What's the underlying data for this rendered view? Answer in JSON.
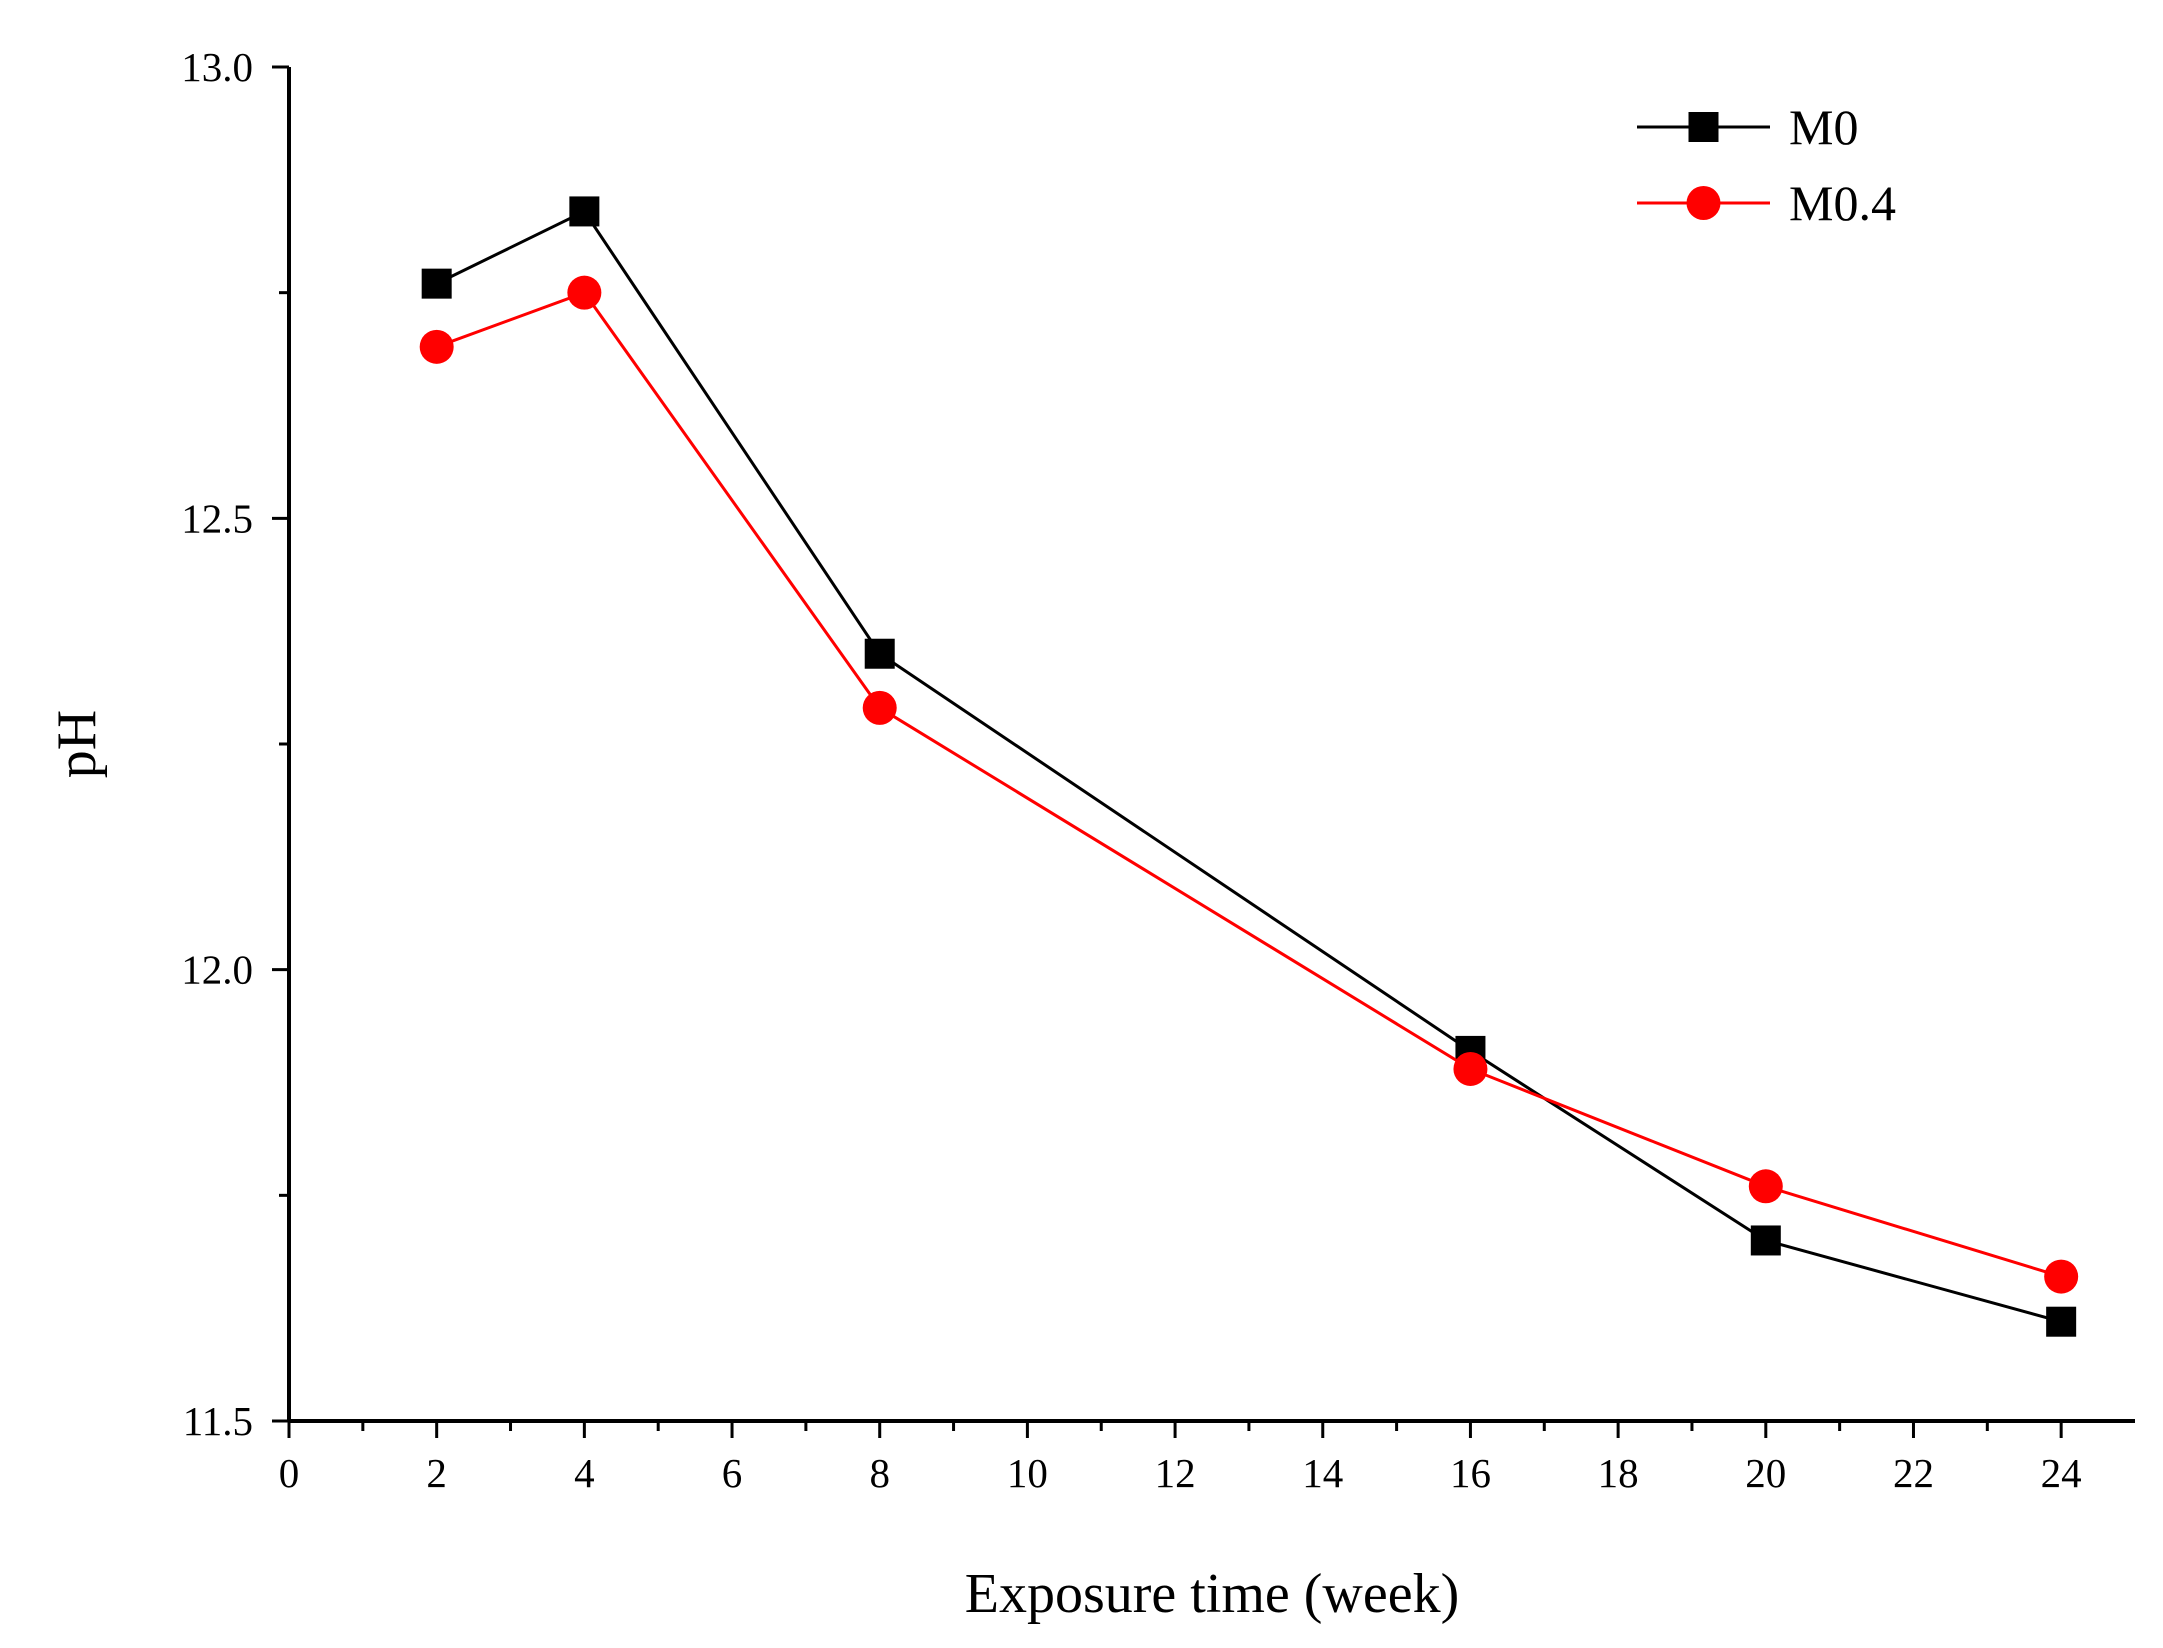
{
  "chart_data": {
    "type": "line",
    "title": "",
    "xlabel": "Exposure time (week)",
    "ylabel": "pH",
    "xlim": [
      0,
      25
    ],
    "ylim": [
      11.5,
      13.0
    ],
    "x_ticks": [
      0,
      2,
      4,
      6,
      8,
      10,
      12,
      14,
      16,
      18,
      20,
      22,
      24
    ],
    "y_ticks": [
      "11.5",
      "12.0",
      "12.5",
      "13.0"
    ],
    "x": [
      2,
      4,
      8,
      16,
      20,
      24
    ],
    "series": [
      {
        "name": "M0",
        "marker": "square",
        "color": "#000000",
        "values": [
          12.76,
          12.84,
          12.35,
          11.91,
          11.7,
          11.61
        ]
      },
      {
        "name": "M0.4",
        "marker": "circle",
        "color": "#ff0000",
        "values": [
          12.69,
          12.75,
          12.29,
          11.89,
          11.76,
          11.66
        ]
      }
    ],
    "legend_position": "top-right",
    "grid": false
  }
}
